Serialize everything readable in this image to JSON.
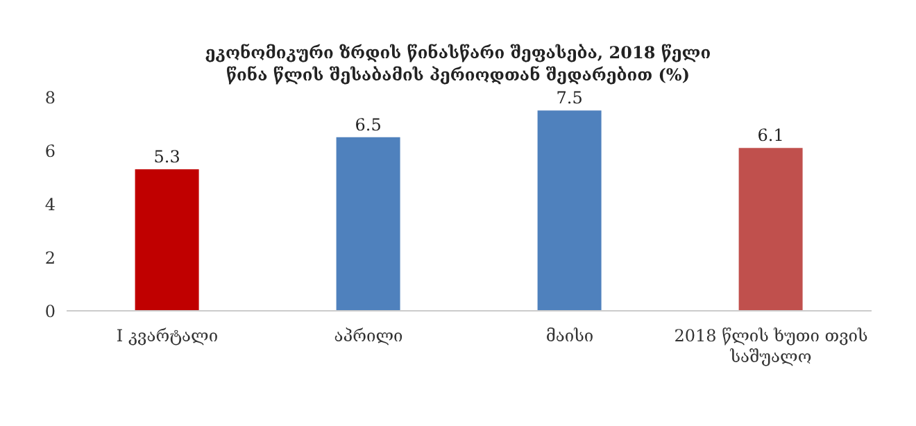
{
  "chart_data": {
    "type": "bar",
    "title": "ეკონომიკური ზრდის წინასწარი შეფასება, 2018 წელი",
    "subtitle": "წინა წლის შესაბამის პერიოდთან შედარებით (%)",
    "categories": [
      "I კვარტალი",
      "აპრილი",
      "მაისი",
      "2018 წლის ხუთი თვის საშუალო"
    ],
    "values": [
      5.3,
      6.5,
      7.5,
      6.1
    ],
    "colors": [
      "#c00000",
      "#4f81bd",
      "#4f81bd",
      "#c0504d"
    ],
    "ylim": [
      0,
      8
    ],
    "yticks": [
      0,
      2,
      4,
      6,
      8
    ],
    "grid": false,
    "data_labels": true
  }
}
